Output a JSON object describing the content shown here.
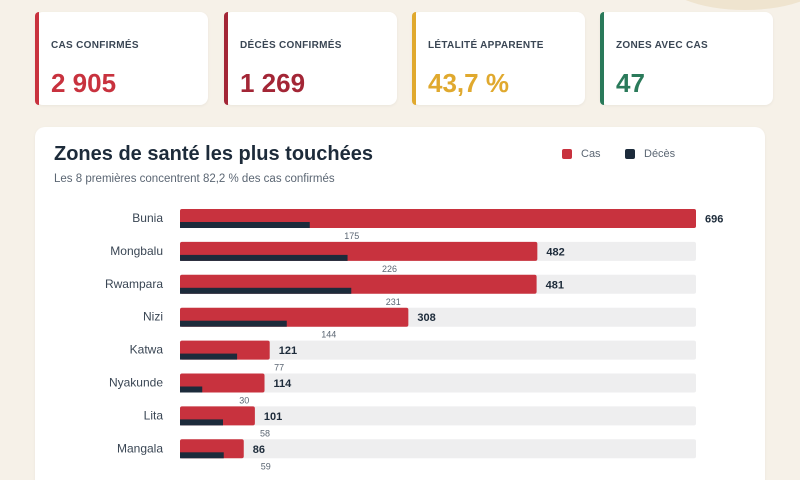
{
  "kpis": [
    {
      "label": "CAS CONFIRMÉS",
      "value": "2 905",
      "color": "#c8323e"
    },
    {
      "label": "DÉCÈS CONFIRMÉS",
      "value": "1 269",
      "color": "#a32636"
    },
    {
      "label": "LÉTALITÉ APPARENTE",
      "value": "43,7 %",
      "color": "#e0a92e"
    },
    {
      "label": "ZONES AVEC CAS",
      "value": "47",
      "color": "#2a7a5a"
    }
  ],
  "chart_data": {
    "type": "bar",
    "orientation": "horizontal",
    "title": "Zones de santé les plus touchées",
    "subtitle": "Les 8 premières concentrent 82,2 % des cas confirmés",
    "categories": [
      "Bunia",
      "Mongbalu",
      "Rwampara",
      "Nizi",
      "Katwa",
      "Nyakunde",
      "Lita",
      "Mangala"
    ],
    "series": [
      {
        "name": "Cas",
        "color": "#c8323e",
        "values": [
          696,
          482,
          481,
          308,
          121,
          114,
          101,
          86
        ]
      },
      {
        "name": "Décès",
        "color": "#1c2b3b",
        "values": [
          175,
          226,
          231,
          144,
          77,
          30,
          58,
          59
        ]
      }
    ],
    "xlim": [
      0,
      696
    ],
    "legend_position": "top-right",
    "track_color": "#eeeeef"
  }
}
